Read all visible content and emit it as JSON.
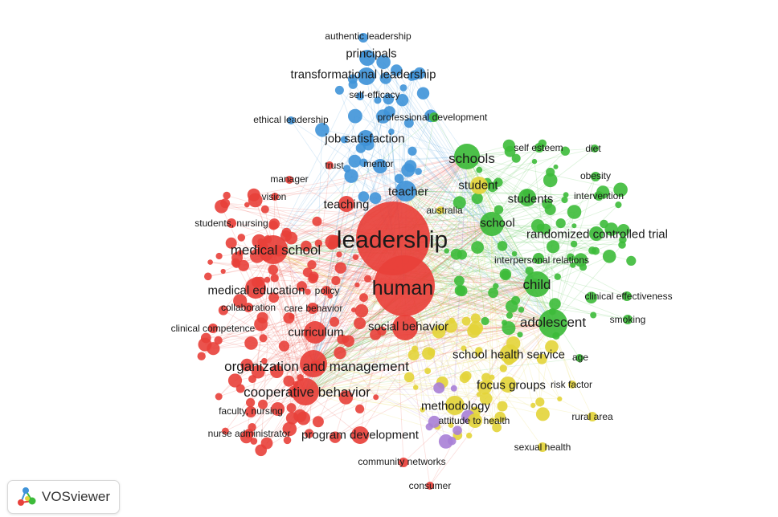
{
  "app": {
    "name": "VOSviewer"
  },
  "colors": {
    "red": "#e8403a",
    "green": "#3dbb3a",
    "blue": "#3f93d8",
    "yellow": "#e3d439",
    "purple": "#a87fd6"
  },
  "network": {
    "labels": [
      {
        "text": "authentic leadership",
        "cluster": "blue",
        "size": "s"
      },
      {
        "text": "principals",
        "cluster": "blue",
        "size": "m"
      },
      {
        "text": "transformational leadership",
        "cluster": "blue",
        "size": "m"
      },
      {
        "text": "self-efficacy",
        "cluster": "blue",
        "size": "s"
      },
      {
        "text": "ethical leadership",
        "cluster": "blue",
        "size": "s"
      },
      {
        "text": "professional development",
        "cluster": "green",
        "size": "s"
      },
      {
        "text": "job satisfaction",
        "cluster": "blue",
        "size": "m"
      },
      {
        "text": "self esteem",
        "cluster": "green",
        "size": "s"
      },
      {
        "text": "diet",
        "cluster": "green",
        "size": "s"
      },
      {
        "text": "schools",
        "cluster": "green",
        "size": "l"
      },
      {
        "text": "trust",
        "cluster": "red",
        "size": "s"
      },
      {
        "text": "mentor",
        "cluster": "blue",
        "size": "s"
      },
      {
        "text": "manager",
        "cluster": "red",
        "size": "s"
      },
      {
        "text": "obesity",
        "cluster": "green",
        "size": "s"
      },
      {
        "text": "student",
        "cluster": "yellow",
        "size": "m"
      },
      {
        "text": "teacher",
        "cluster": "blue",
        "size": "m"
      },
      {
        "text": "vision",
        "cluster": "red",
        "size": "s"
      },
      {
        "text": "students",
        "cluster": "green",
        "size": "m"
      },
      {
        "text": "intervention",
        "cluster": "green",
        "size": "s"
      },
      {
        "text": "teaching",
        "cluster": "red",
        "size": "m"
      },
      {
        "text": "australia",
        "cluster": "yellow",
        "size": "s"
      },
      {
        "text": "school",
        "cluster": "green",
        "size": "m"
      },
      {
        "text": "students, nursing",
        "cluster": "red",
        "size": "s"
      },
      {
        "text": "leadership",
        "cluster": "red",
        "size": "xxl"
      },
      {
        "text": "randomized controlled trial",
        "cluster": "green",
        "size": "m"
      },
      {
        "text": "medical school",
        "cluster": "red",
        "size": "l"
      },
      {
        "text": "interpersonal relations",
        "cluster": "green",
        "size": "s"
      },
      {
        "text": "human",
        "cluster": "red",
        "size": "xl"
      },
      {
        "text": "child",
        "cluster": "green",
        "size": "l"
      },
      {
        "text": "medical education",
        "cluster": "red",
        "size": "m"
      },
      {
        "text": "policy",
        "cluster": "red",
        "size": "s"
      },
      {
        "text": "clinical effectiveness",
        "cluster": "green",
        "size": "s"
      },
      {
        "text": "collaboration",
        "cluster": "red",
        "size": "s"
      },
      {
        "text": "care behavior",
        "cluster": "red",
        "size": "s"
      },
      {
        "text": "adolescent",
        "cluster": "green",
        "size": "l"
      },
      {
        "text": "smoking",
        "cluster": "green",
        "size": "s"
      },
      {
        "text": "clinical competence",
        "cluster": "red",
        "size": "s"
      },
      {
        "text": "curriculum",
        "cluster": "red",
        "size": "m"
      },
      {
        "text": "social behavior",
        "cluster": "red",
        "size": "m"
      },
      {
        "text": "school health service",
        "cluster": "yellow",
        "size": "m"
      },
      {
        "text": "age",
        "cluster": "green",
        "size": "s"
      },
      {
        "text": "organization and management",
        "cluster": "red",
        "size": "l"
      },
      {
        "text": "focus groups",
        "cluster": "yellow",
        "size": "m"
      },
      {
        "text": "risk factor",
        "cluster": "yellow",
        "size": "s"
      },
      {
        "text": "cooperative behavior",
        "cluster": "red",
        "size": "l"
      },
      {
        "text": "methodology",
        "cluster": "yellow",
        "size": "m"
      },
      {
        "text": "faculty, nursing",
        "cluster": "red",
        "size": "s"
      },
      {
        "text": "rural area",
        "cluster": "yellow",
        "size": "s"
      },
      {
        "text": "attitude to health",
        "cluster": "yellow",
        "size": "s"
      },
      {
        "text": "nurse administrator",
        "cluster": "red",
        "size": "s"
      },
      {
        "text": "program development",
        "cluster": "red",
        "size": "m"
      },
      {
        "text": "sexual health",
        "cluster": "yellow",
        "size": "s"
      },
      {
        "text": "community networks",
        "cluster": "red",
        "size": "s"
      },
      {
        "text": "consumer",
        "cluster": "red",
        "size": "s"
      }
    ]
  }
}
